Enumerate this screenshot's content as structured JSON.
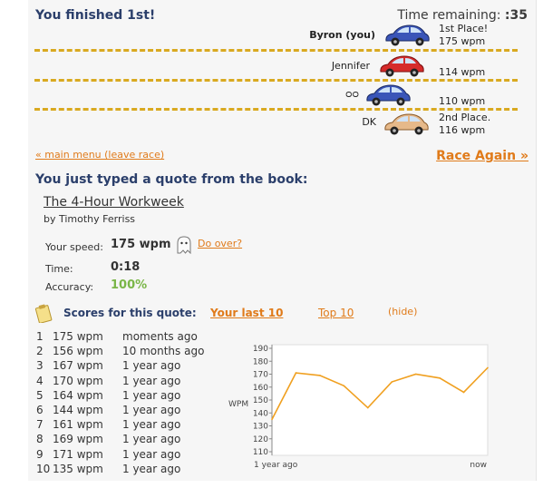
{
  "header": {
    "result": "You finished 1st!",
    "time_label": "Time remaining:",
    "time_value": ":35"
  },
  "race": {
    "racers": [
      {
        "name": "Byron (you)",
        "car_color": "#3a55b8",
        "place_line1": "1st Place!",
        "place_line2": "175 wpm"
      },
      {
        "name": "Jennifer",
        "car_color": "#d62b2b",
        "place_line1": "",
        "place_line2": "114 wpm"
      },
      {
        "name": "ᴑᴑ",
        "car_color": "#3a55b8",
        "place_line1": "",
        "place_line2": "110 wpm"
      },
      {
        "name": "DK",
        "car_color": "#e6b98a",
        "place_line1": "2nd Place.",
        "place_line2": "116 wpm"
      }
    ]
  },
  "links": {
    "main_menu": "« main menu (leave race)",
    "race_again": "Race Again »",
    "do_over": "Do over?"
  },
  "quote": {
    "heading": "You just typed a quote from the book:",
    "title": "The 4-Hour Workweek",
    "author": "by Timothy Ferriss"
  },
  "stats": {
    "speed_label": "Your speed:",
    "speed_value": "175 wpm",
    "time_label": "Time:",
    "time_value": "0:18",
    "accuracy_label": "Accuracy:",
    "accuracy_value": "100%"
  },
  "scores": {
    "label": "Scores for this quote:",
    "tab_last": "Your last 10",
    "tab_top": "Top 10",
    "hide": "(hide)",
    "rows": [
      {
        "rank": "1",
        "wpm": "175 wpm",
        "when": "moments ago"
      },
      {
        "rank": "2",
        "wpm": "156 wpm",
        "when": "10 months ago"
      },
      {
        "rank": "3",
        "wpm": "167 wpm",
        "when": "1 year ago"
      },
      {
        "rank": "4",
        "wpm": "170 wpm",
        "when": "1 year ago"
      },
      {
        "rank": "5",
        "wpm": "164 wpm",
        "when": "1 year ago"
      },
      {
        "rank": "6",
        "wpm": "144 wpm",
        "when": "1 year ago"
      },
      {
        "rank": "7",
        "wpm": "161 wpm",
        "when": "1 year ago"
      },
      {
        "rank": "8",
        "wpm": "169 wpm",
        "when": "1 year ago"
      },
      {
        "rank": "9",
        "wpm": "171 wpm",
        "when": "1 year ago"
      },
      {
        "rank": "10",
        "wpm": "135 wpm",
        "when": "1 year ago"
      }
    ]
  },
  "chart_data": {
    "type": "line",
    "ylabel": "WPM",
    "x_start_label": "1 year ago",
    "x_end_label": "now",
    "ylim": [
      110,
      190
    ],
    "yticks": [
      "190",
      "180",
      "170",
      "160",
      "150",
      "140",
      "130",
      "120",
      "110"
    ],
    "values": [
      135,
      171,
      169,
      161,
      144,
      164,
      170,
      167,
      156,
      175
    ],
    "line_color": "#f0a020"
  }
}
